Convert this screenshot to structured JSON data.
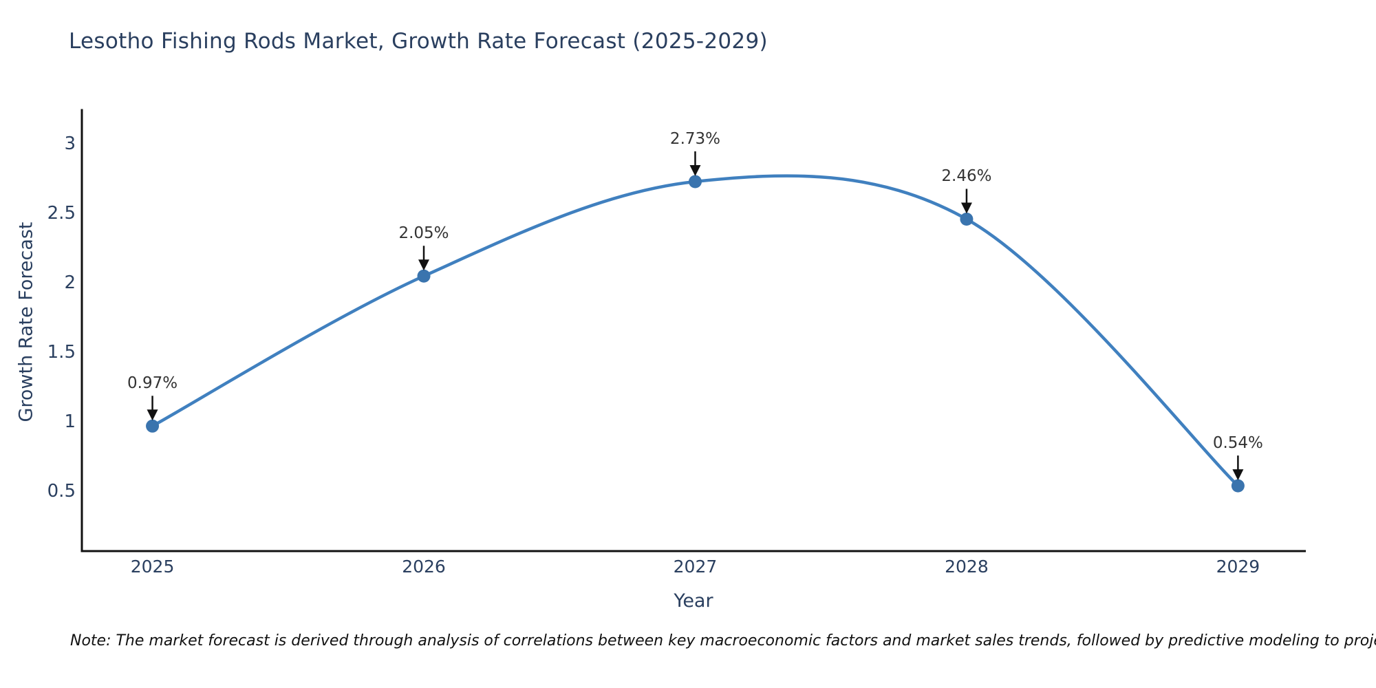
{
  "chart_data": {
    "type": "line",
    "title": "Lesotho Fishing Rods Market, Growth Rate Forecast (2025-2029)",
    "xlabel": "Year",
    "ylabel": "Growth Rate Forecast",
    "x": [
      2025,
      2026,
      2027,
      2028,
      2029
    ],
    "values": [
      0.97,
      2.05,
      2.73,
      2.46,
      0.54
    ],
    "point_labels": [
      "0.97%",
      "2.05%",
      "2.73%",
      "2.46%",
      "0.54%"
    ],
    "xticks": [
      "2025",
      "2026",
      "2027",
      "2028",
      "2029"
    ],
    "yticks": [
      0.5,
      1,
      1.5,
      2,
      2.5,
      3
    ],
    "xlim": [
      2024.74,
      2029.25
    ],
    "ylim": [
      0.07,
      3.245
    ],
    "line_shape": "spline",
    "grid": false,
    "legend": "none",
    "annotations": "black down-arrows from each percentage label to its marker",
    "colors": {
      "line": "#4080bf",
      "marker": "#3a74ae",
      "axis": "#111111",
      "tick_text": "#2a3f5f",
      "title_text": "#2a3f5f",
      "annotation_text": "#333333",
      "arrow": "#111111",
      "background": "#ffffff"
    },
    "note": "Note: The market forecast is derived through analysis of correlations between key macroeconomic factors and market sales trends, followed by predictive modeling to project future sales"
  }
}
